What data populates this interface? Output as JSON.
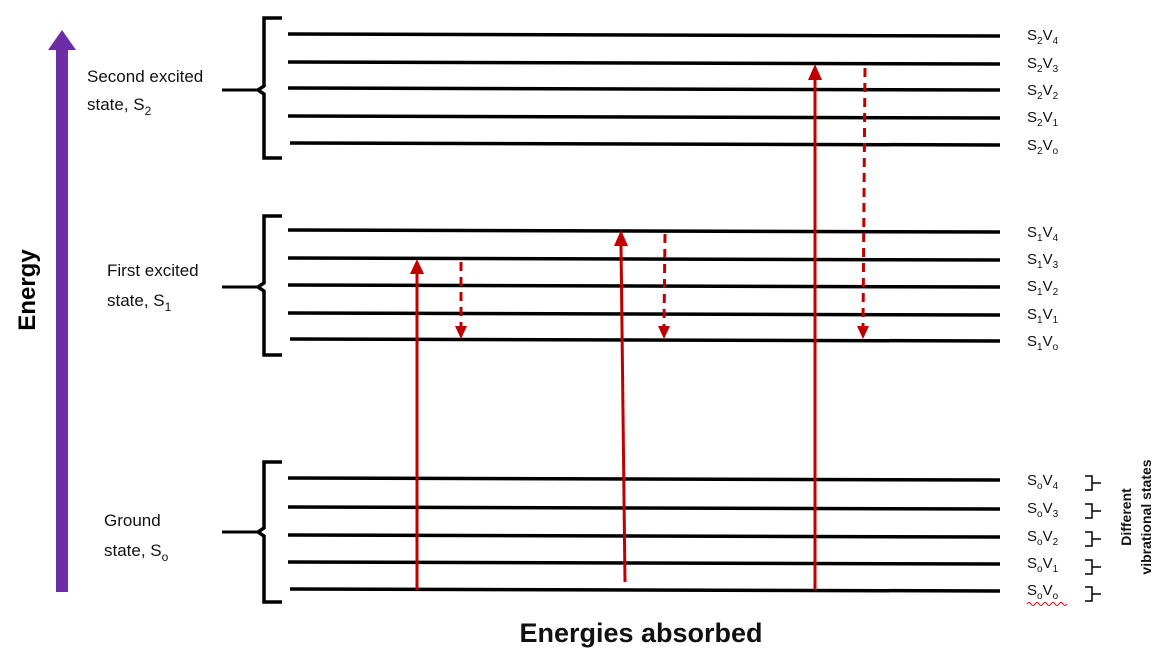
{
  "axis_label": "Energy",
  "bottom_label": "Energies absorbed",
  "side_label_line1": "Different",
  "side_label_line2": "vibrational states",
  "colors": {
    "energy_arrow": "#6c2ea6",
    "transition": "#c00000",
    "line": "#000000"
  },
  "groups": [
    {
      "name_line1": "Second excited",
      "name_line2_prefix": "state, S",
      "name_sub": "2",
      "levels": [
        {
          "s": "S",
          "s_sub": "2",
          "v": "V",
          "v_sub": "4"
        },
        {
          "s": "S",
          "s_sub": "2",
          "v": "V",
          "v_sub": "3"
        },
        {
          "s": "S",
          "s_sub": "2",
          "v": "V",
          "v_sub": "2"
        },
        {
          "s": "S",
          "s_sub": "2",
          "v": "V",
          "v_sub": "1"
        },
        {
          "s": "S",
          "s_sub": "2",
          "v": "V",
          "v_sub": "o"
        }
      ]
    },
    {
      "name_line1": "First excited",
      "name_line2_prefix": "state, S",
      "name_sub": "1",
      "levels": [
        {
          "s": "S",
          "s_sub": "1",
          "v": "V",
          "v_sub": "4"
        },
        {
          "s": "S",
          "s_sub": "1",
          "v": "V",
          "v_sub": "3"
        },
        {
          "s": "S",
          "s_sub": "1",
          "v": "V",
          "v_sub": "2"
        },
        {
          "s": "S",
          "s_sub": "1",
          "v": "V",
          "v_sub": "1"
        },
        {
          "s": "S",
          "s_sub": "1",
          "v": "V",
          "v_sub": "o"
        }
      ]
    },
    {
      "name_line1": "Ground",
      "name_line2_prefix": "state, S",
      "name_sub": "o",
      "levels": [
        {
          "s": "S",
          "s_sub": "o",
          "v": "V",
          "v_sub": "4"
        },
        {
          "s": "S",
          "s_sub": "o",
          "v": "V",
          "v_sub": "3"
        },
        {
          "s": "S",
          "s_sub": "o",
          "v": "V",
          "v_sub": "2"
        },
        {
          "s": "S",
          "s_sub": "o",
          "v": "V",
          "v_sub": "1"
        },
        {
          "s": "S",
          "s_sub": "o",
          "v": "V",
          "v_sub": "o"
        }
      ]
    }
  ]
}
